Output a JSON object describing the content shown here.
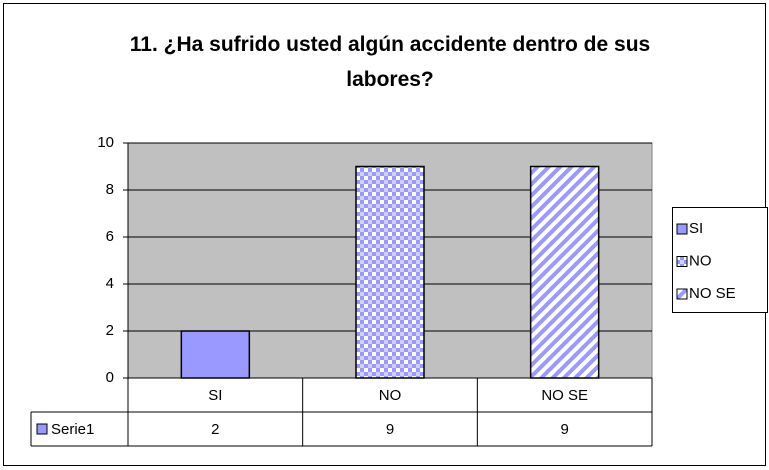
{
  "chart_data": {
    "type": "bar",
    "title": "11. ¿Ha sufrido usted algún accidente dentro de sus labores?",
    "categories": [
      "SI",
      "NO",
      "NO SE"
    ],
    "series_name": "Serie1",
    "values": [
      2,
      9,
      9
    ],
    "color": "#9999ff",
    "ylim": [
      0,
      10
    ],
    "yticks": [
      0,
      2,
      4,
      6,
      8,
      10
    ],
    "grid": true,
    "legend": "right",
    "data_table": true
  }
}
